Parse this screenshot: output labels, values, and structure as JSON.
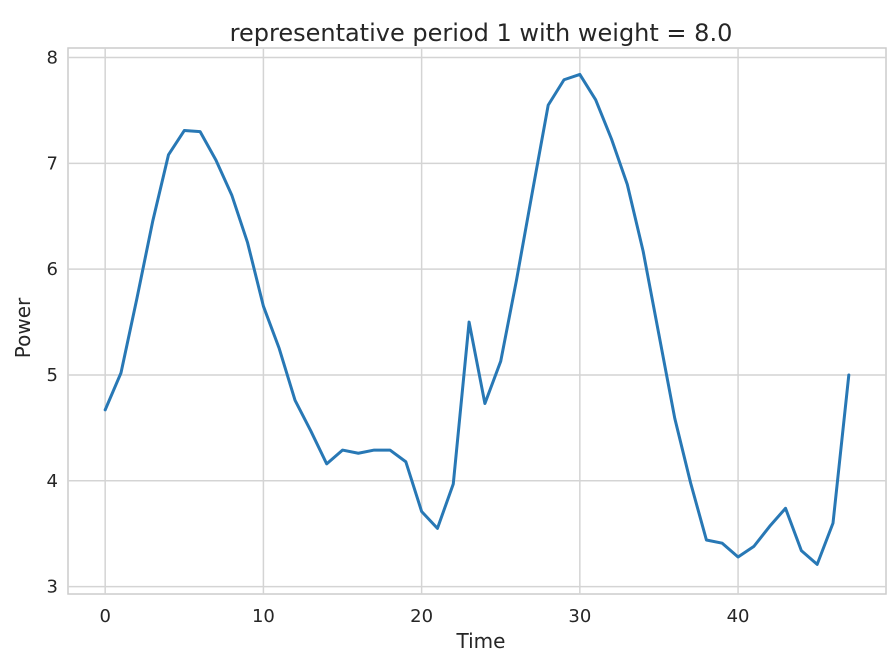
{
  "chart_data": {
    "type": "line",
    "title": "representative period 1 with weight = 8.0",
    "xlabel": "Time",
    "ylabel": "Power",
    "xlim": [
      -2.35,
      49.35
    ],
    "ylim": [
      2.93,
      8.09
    ],
    "xticks": [
      0,
      10,
      20,
      30,
      40
    ],
    "yticks": [
      3,
      4,
      5,
      6,
      7,
      8
    ],
    "grid": true,
    "legend": "none",
    "series_color": "#2878b5",
    "x": [
      0,
      1,
      2,
      3,
      4,
      5,
      6,
      7,
      8,
      9,
      10,
      11,
      12,
      13,
      14,
      15,
      16,
      17,
      18,
      19,
      20,
      21,
      22,
      23,
      24,
      25,
      26,
      27,
      28,
      29,
      30,
      31,
      32,
      33,
      34,
      35,
      36,
      37,
      38,
      39,
      40,
      41,
      42,
      43,
      44,
      45,
      46,
      47
    ],
    "series": [
      {
        "values": [
          4.67,
          5.02,
          5.72,
          6.45,
          7.08,
          7.31,
          7.3,
          7.03,
          6.7,
          6.25,
          5.65,
          5.25,
          4.76,
          4.47,
          4.16,
          4.29,
          4.26,
          4.29,
          4.29,
          4.18,
          3.71,
          3.55,
          3.97,
          5.5,
          4.73,
          5.13,
          5.9,
          6.73,
          7.55,
          7.79,
          7.84,
          7.6,
          7.23,
          6.8,
          6.17,
          5.38,
          4.59,
          3.98,
          3.44,
          3.41,
          3.28,
          3.38,
          3.57,
          3.74,
          3.34,
          3.21,
          3.6,
          5.0
        ]
      }
    ]
  }
}
